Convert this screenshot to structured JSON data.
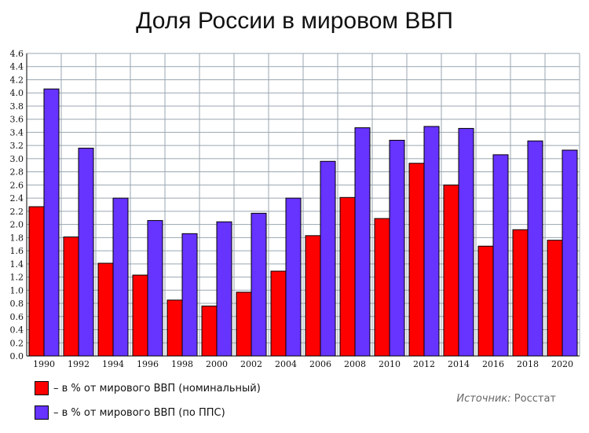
{
  "chart_data": {
    "type": "bar",
    "title": "Доля России в мировом ВВП",
    "xlabel": "",
    "ylabel": "",
    "categories": [
      "1990",
      "1992",
      "1994",
      "1996",
      "1998",
      "2000",
      "2002",
      "2004",
      "2006",
      "2008",
      "2010",
      "2012",
      "2014",
      "2016",
      "2018",
      "2020"
    ],
    "series": [
      {
        "name": "– в % от мирового ВВП (номинальный)",
        "color": "#ff0000",
        "values": [
          2.27,
          1.81,
          1.41,
          1.23,
          0.85,
          0.76,
          0.97,
          1.29,
          1.83,
          2.41,
          2.09,
          2.93,
          2.6,
          1.67,
          1.92,
          1.76
        ]
      },
      {
        "name": "– в % от мирового ВВП (по ППС)",
        "color": "#6633ff",
        "values": [
          4.06,
          3.16,
          2.4,
          2.06,
          1.86,
          2.04,
          2.17,
          2.4,
          2.96,
          3.47,
          3.28,
          3.49,
          3.46,
          3.06,
          3.27,
          3.13
        ]
      }
    ],
    "ylim": [
      0,
      4.6
    ],
    "ytick_step": 0.2,
    "ytick_labels": [
      "0.0",
      "0.2",
      "0.4",
      "0.6",
      "0.8",
      "1.0",
      "1.2",
      "1.4",
      "1.6",
      "1.8",
      "2.0",
      "2.2",
      "2.4",
      "2.6",
      "2.8",
      "3.0",
      "3.2",
      "3.4",
      "3.6",
      "3.8",
      "4.0",
      "4.2",
      "4.4",
      "4.6"
    ],
    "grid": true,
    "legend_placement": "bottom-left",
    "source_label": "Источник:",
    "source_value": "Росстат"
  }
}
